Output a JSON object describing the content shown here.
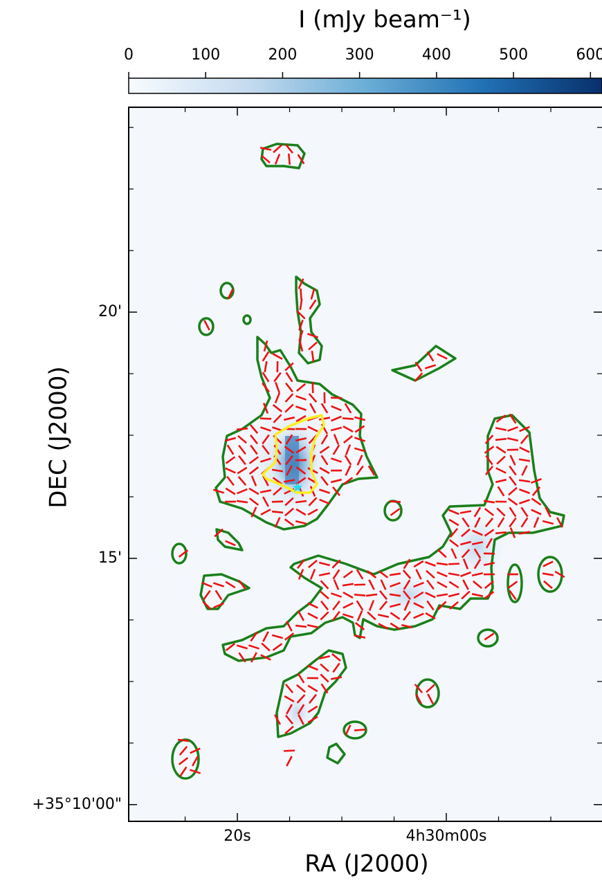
{
  "chart_data": {
    "type": "map",
    "colorbar_label": "I (mJy beam⁻¹)",
    "clim": [
      0,
      615
    ],
    "cticks": [
      0,
      100,
      200,
      300,
      400,
      500,
      600
    ],
    "xlabel": "RA (J2000)",
    "ylabel": "DEC (J2000)",
    "xlim": [
      30.4,
      -14.9
    ],
    "xticks": [
      {
        "value": 20,
        "label": "20s"
      },
      {
        "value": 0,
        "label": "4h30m00s"
      }
    ],
    "xminorticks": [
      25,
      15,
      10,
      5,
      -5,
      -10
    ],
    "ylim": [
      9.66,
      24.16
    ],
    "yticks": [
      {
        "value": 10,
        "label": "+35°10'00\""
      },
      {
        "value": 15,
        "label": "15'"
      },
      {
        "value": 20,
        "label": "20'"
      }
    ],
    "yminorticks": [
      11.25,
      12.5,
      13.75,
      16.25,
      17.5,
      18.75,
      21.25,
      22.5,
      23.75
    ]
  }
}
